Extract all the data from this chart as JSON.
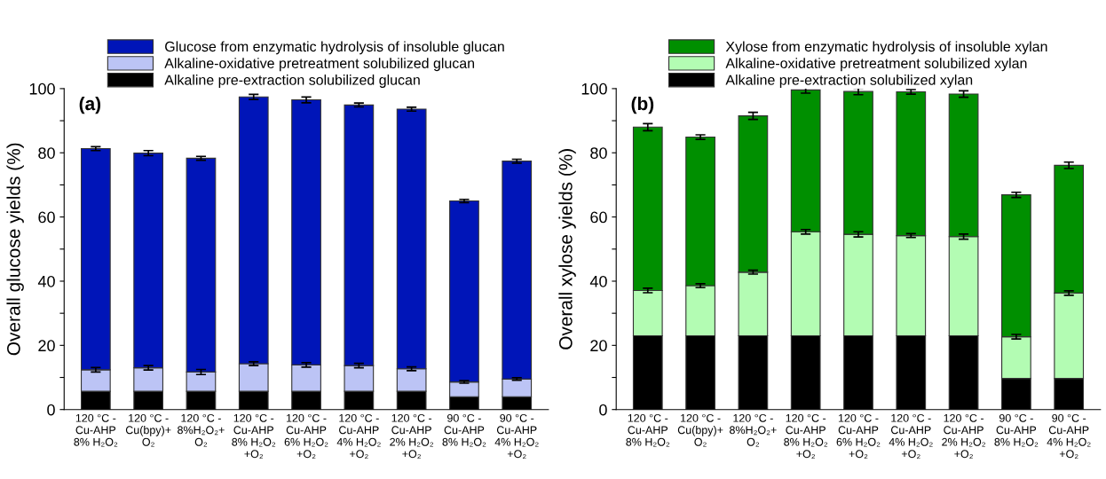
{
  "chart_data": [
    {
      "type": "bar",
      "stacked": true,
      "ylabel": "Overall glucose yields (%)",
      "annotations": [
        "(a)"
      ],
      "legend": "top",
      "grid": false,
      "categories": [
        "120 °C -\nCu-AHP\n8% H₂O₂",
        "120 °C -\nCu(bpy)+\nO₂",
        "120 °C -\n8%H₂O₂+\nO₂",
        "120 °C -\nCu-AHP\n8% H₂O₂\n+O₂",
        "120 °C -\nCu-AHP\n6% H₂O₂\n+O₂",
        "120 °C -\nCu-AHP\n4% H₂O₂\n+O₂",
        "120 °C -\nCu-AHP\n2% H₂O₂\n+O₂",
        "90 °C -\nCu-AHP\n8% H₂O₂",
        "90 °C -\nCu-AHP\n4% H₂O₂\n+O₂"
      ],
      "series": [
        {
          "name": "Alkaline pre-extraction solubilized glucan",
          "color": "#000000",
          "values": [
            5.7,
            5.7,
            5.7,
            5.7,
            5.7,
            5.7,
            5.7,
            4.0,
            4.0
          ]
        },
        {
          "name": "Alkaline-oxidative pretreatment solubilized glucan",
          "color": "#bcc4f5",
          "values": [
            6.7,
            7.3,
            6.0,
            8.6,
            8.2,
            8.0,
            7.0,
            4.6,
            5.5
          ],
          "errors": [
            0.7,
            0.7,
            0.8,
            0.6,
            0.7,
            0.7,
            0.6,
            0.4,
            0.4
          ]
        },
        {
          "name": "Glucose from enzymatic hydrolysis of insoluble glucan",
          "color": "#0015b8",
          "values": [
            68.9,
            66.9,
            66.6,
            83.1,
            82.6,
            81.2,
            80.9,
            56.4,
            67.9
          ],
          "errors": [
            0.6,
            0.8,
            0.6,
            0.8,
            0.9,
            0.6,
            0.6,
            0.5,
            0.6
          ]
        }
      ],
      "ylim": [
        0,
        100
      ],
      "yticks": [
        0,
        {
          "value": 10,
          "label": null
        },
        20,
        {
          "value": 30,
          "label": null
        },
        40,
        {
          "value": 50,
          "label": null
        },
        60,
        {
          "value": 70,
          "label": null
        },
        80,
        {
          "value": 90,
          "label": null
        },
        100
      ]
    },
    {
      "type": "bar",
      "stacked": true,
      "ylabel": "Overall xylose yields (%)",
      "annotations": [
        "(b)"
      ],
      "legend": "top",
      "grid": false,
      "categories": [
        "120 °C -\nCu-AHP\n8% H₂O₂",
        "120 °C -\nCu(bpy)+\nO₂",
        "120 °C -\n8%H₂O₂+\nO₂",
        "120 °C -\nCu-AHP\n8% H₂O₂\n+O₂",
        "120 °C -\nCu-AHP\n6% H₂O₂\n+O₂",
        "120 °C -\nCu-AHP\n4% H₂O₂\n+O₂",
        "120 °C -\nCu-AHP\n2% H₂O₂\n+O₂",
        "90 °C -\nCu-AHP\n8% H₂O₂",
        "90 °C -\nCu-AHP\n4% H₂O₂\n+O₂"
      ],
      "series": [
        {
          "name": "Alkaline pre-extraction solubilized xylan",
          "color": "#000000",
          "values": [
            23.0,
            23.0,
            23.0,
            23.0,
            23.0,
            23.0,
            23.0,
            9.7,
            9.7
          ]
        },
        {
          "name": "Alkaline-oxidative pretreatment solubilized xylan",
          "color": "#b3fcb3",
          "values": [
            14.1,
            15.6,
            19.8,
            32.4,
            31.6,
            31.2,
            30.9,
            13.0,
            26.6
          ],
          "errors": [
            0.7,
            0.6,
            0.6,
            0.7,
            0.8,
            0.6,
            0.8,
            0.7,
            0.7
          ]
        },
        {
          "name": "Xylose from enzymatic hydrolysis of insoluble xylan",
          "color": "#008f00",
          "values": [
            50.9,
            46.3,
            48.7,
            44.2,
            44.5,
            44.8,
            44.4,
            44.2,
            39.8
          ],
          "errors": [
            1.1,
            0.7,
            1.1,
            1.0,
            1.0,
            0.7,
            1.0,
            0.8,
            1.0
          ]
        }
      ],
      "ylim": [
        0,
        100
      ],
      "yticks": [
        0,
        {
          "value": 10,
          "label": null
        },
        20,
        {
          "value": 30,
          "label": null
        },
        40,
        {
          "value": 50,
          "label": null
        },
        60,
        {
          "value": 70,
          "label": null
        },
        80,
        {
          "value": 90,
          "label": null
        },
        100
      ]
    }
  ]
}
